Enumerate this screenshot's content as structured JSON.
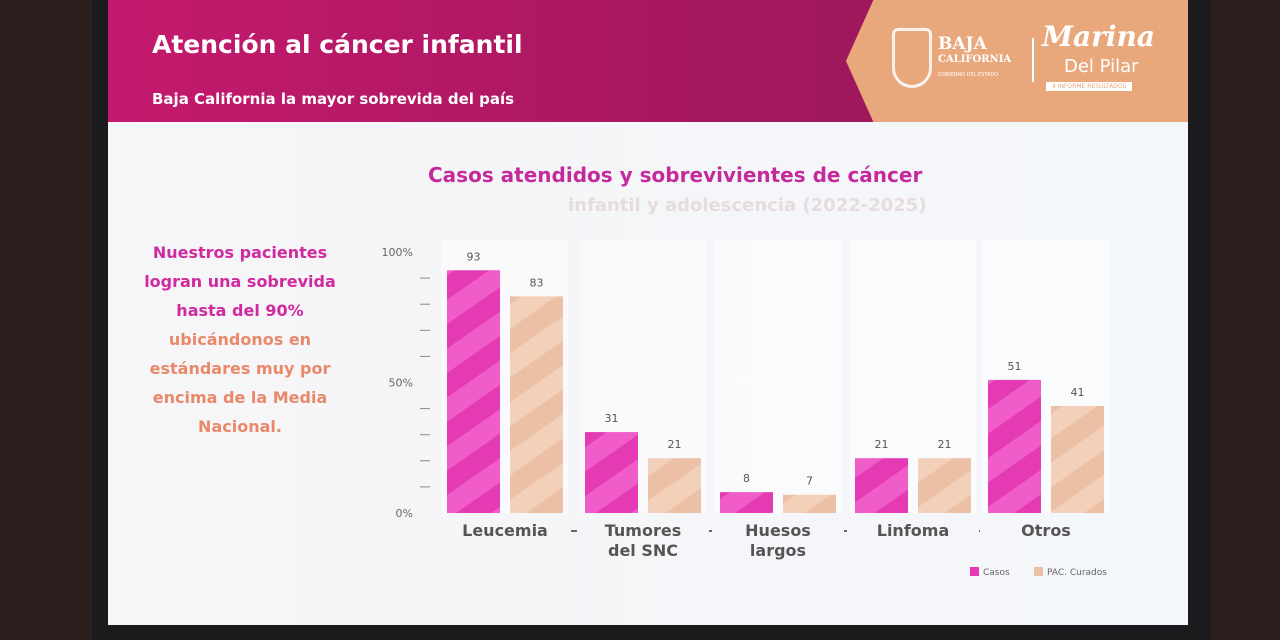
{
  "header": {
    "title": "Atención al cáncer infantil",
    "subtitle": "Baja California la mayor sobrevida del país"
  },
  "logo": {
    "state_line1": "BAJA",
    "state_line2": "CALIFORNIA",
    "state_line3": "GOBIERNO DEL ESTADO",
    "name_line1": "Marina",
    "name_line2": "Del Pilar",
    "name_line3": "4 INFORME RESULTADOS"
  },
  "side_text": {
    "part1": "Nuestros",
    "part2": "pacientes logran una sobrevida hasta del 90%",
    "part3": "ubicándonos en estándares muy por encima de la Media Nacional."
  },
  "colors": {
    "casos": "#e43bb5",
    "curados": "#ebc0a4",
    "header": "#b0185f",
    "badge": "#e9a77c"
  },
  "chart_data": {
    "type": "bar",
    "title": "Casos atendidos y sobrevivientes de cáncer",
    "subtitle": "infantil y adolescencia (2022-2025)",
    "categories": [
      [
        "Leucemia"
      ],
      [
        "Tumores",
        "del SNC"
      ],
      [
        "Huesos",
        "largos"
      ],
      [
        "Linfoma"
      ],
      [
        "Otros"
      ]
    ],
    "series": [
      {
        "name": "Casos",
        "values": [
          93,
          31,
          8,
          21,
          51
        ]
      },
      {
        "name": "PAC. Curados",
        "values": [
          83,
          21,
          7,
          21,
          41
        ]
      }
    ],
    "yticks": [
      "100%",
      "50%",
      "0%"
    ],
    "ylim": [
      0,
      100
    ],
    "legend": "bottom-right"
  }
}
